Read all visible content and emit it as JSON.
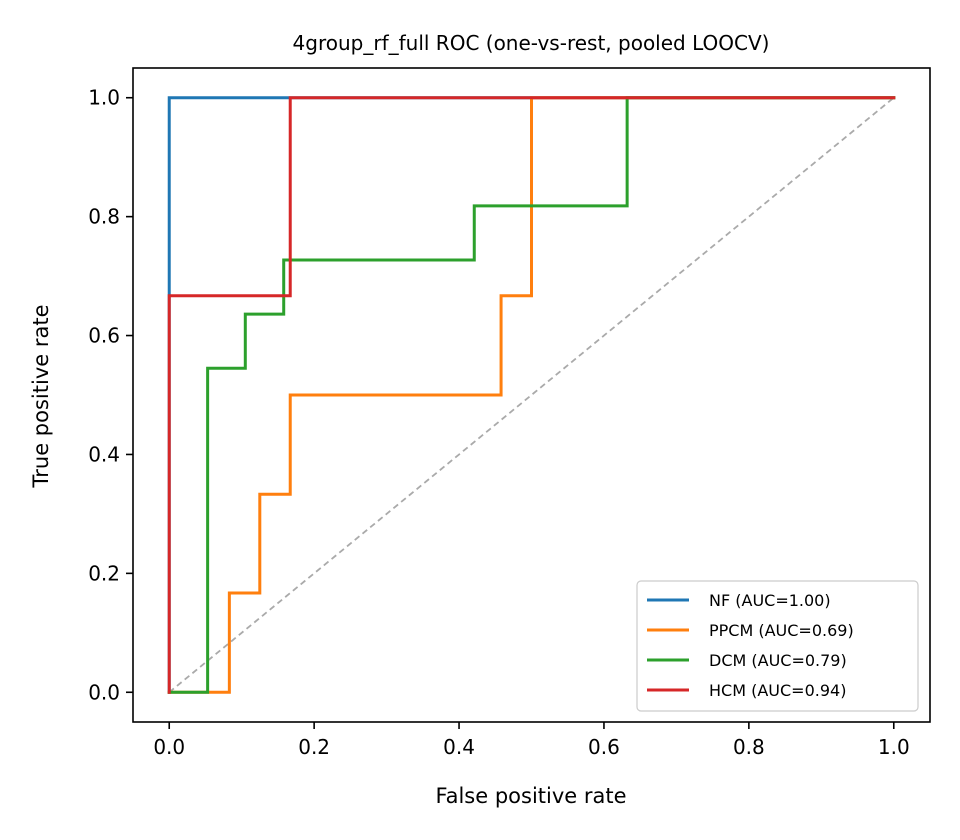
{
  "chart_data": {
    "type": "line",
    "title": "4group_rf_full ROC (one-vs-rest, pooled LOOCV)",
    "xlabel": "False positive rate",
    "ylabel": "True positive rate",
    "xlim": [
      -0.05,
      1.05
    ],
    "ylim": [
      -0.05,
      1.05
    ],
    "xticks": [
      "0.0",
      "0.2",
      "0.4",
      "0.6",
      "0.8",
      "1.0"
    ],
    "yticks": [
      "0.0",
      "0.2",
      "0.4",
      "0.6",
      "0.8",
      "1.0"
    ],
    "grid": false,
    "legend_position": "lower-right",
    "diagonal": {
      "x": [
        0,
        1
      ],
      "y": [
        0,
        1
      ],
      "color": "#aaaaaa",
      "style": "dashed"
    },
    "series": [
      {
        "name": "NF (AUC=1.00)",
        "color": "#1f77b4",
        "x": [
          0,
          0,
          0,
          1
        ],
        "y": [
          0,
          0.667,
          1.0,
          1.0
        ]
      },
      {
        "name": "PPCM (AUC=0.69)",
        "color": "#ff7f0e",
        "x": [
          0,
          0.083,
          0.083,
          0.125,
          0.125,
          0.167,
          0.167,
          0.458,
          0.458,
          0.5,
          0.5,
          1.0
        ],
        "y": [
          0,
          0,
          0.167,
          0.167,
          0.333,
          0.333,
          0.5,
          0.5,
          0.667,
          0.667,
          1.0,
          1.0
        ]
      },
      {
        "name": "DCM (AUC=0.79)",
        "color": "#2ca02c",
        "x": [
          0,
          0.053,
          0.053,
          0.105,
          0.105,
          0.158,
          0.158,
          0.421,
          0.421,
          0.632,
          0.632,
          1.0
        ],
        "y": [
          0,
          0,
          0.545,
          0.545,
          0.636,
          0.636,
          0.727,
          0.727,
          0.818,
          0.818,
          1.0,
          1.0
        ]
      },
      {
        "name": "HCM (AUC=0.94)",
        "color": "#d62728",
        "x": [
          0,
          0,
          0.167,
          0.167,
          1.0
        ],
        "y": [
          0,
          0.667,
          0.667,
          1.0,
          1.0
        ]
      }
    ]
  }
}
